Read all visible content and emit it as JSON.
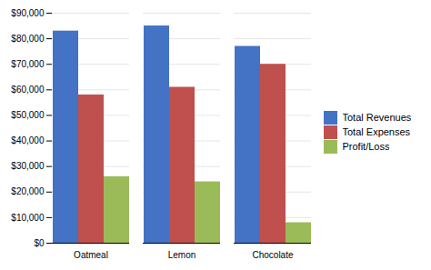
{
  "chart_data": {
    "type": "bar",
    "categories": [
      "Oatmeal",
      "Lemon",
      "Chocolate"
    ],
    "series": [
      {
        "name": "Total Revenues",
        "color": "#4472C4",
        "values": [
          83000,
          85000,
          77000
        ]
      },
      {
        "name": "Total Expenses",
        "color": "#C0504D",
        "values": [
          58000,
          61000,
          70000
        ]
      },
      {
        "name": "Profit/Loss",
        "color": "#9BBB59",
        "values": [
          26000,
          24000,
          8000
        ]
      }
    ],
    "ylim": [
      0,
      90000
    ],
    "yticks": [
      {
        "value": 0,
        "label": "$0"
      },
      {
        "value": 10000,
        "label": "$10,000"
      },
      {
        "value": 20000,
        "label": "$20,000"
      },
      {
        "value": 30000,
        "label": "$30,000"
      },
      {
        "value": 40000,
        "label": "$40,000"
      },
      {
        "value": 50000,
        "label": "$50,000"
      },
      {
        "value": 60000,
        "label": "$60,000"
      },
      {
        "value": 70000,
        "label": "$70,000"
      },
      {
        "value": 80000,
        "label": "$80,000"
      },
      {
        "value": 90000,
        "label": "$90,000"
      }
    ],
    "grid": true,
    "legend": "right"
  }
}
